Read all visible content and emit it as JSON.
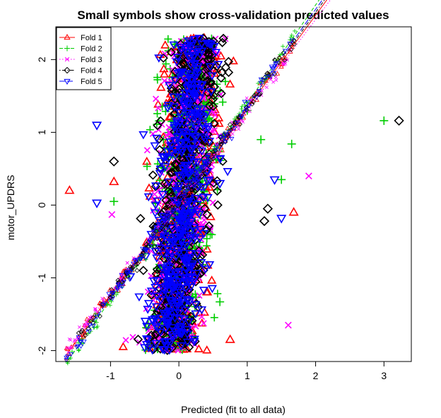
{
  "chart_data": {
    "type": "scatter",
    "title": "Small symbols show cross-validation predicted values",
    "xlabel": "Predicted (fit to all data)",
    "ylabel": "motor_UPDRS",
    "xlim": [
      -1.8,
      3.4
    ],
    "ylim": [
      -2.15,
      2.45
    ],
    "xticks": [
      -1,
      0,
      1,
      2,
      3
    ],
    "yticks": [
      -2,
      -1,
      0,
      1,
      2
    ],
    "legend_position": "top-left",
    "series": [
      {
        "name": "Fold 1",
        "color": "#ff0000",
        "symbol": "triangle-up",
        "line_style": "solid",
        "slope": 1.28,
        "intercept": 0.05
      },
      {
        "name": "Fold 2",
        "color": "#00cd00",
        "symbol": "plus",
        "line_style": "dashed",
        "slope": 1.35,
        "intercept": 0.05
      },
      {
        "name": "Fold 3",
        "color": "#ff00ff",
        "symbol": "cross",
        "line_style": "dotted",
        "slope": 1.25,
        "intercept": 0.05
      },
      {
        "name": "Fold 4",
        "color": "#000000",
        "symbol": "diamond",
        "line_style": "dotdash",
        "slope": 1.3,
        "intercept": 0.05
      },
      {
        "name": "Fold 5",
        "color": "#0000ff",
        "symbol": "triangle-down",
        "line_style": "longdash",
        "slope": 1.32,
        "intercept": 0.05
      }
    ],
    "outliers": [
      {
        "fold": "Fold 1",
        "x": -1.6,
        "y": 0.2
      },
      {
        "fold": "Fold 2",
        "x": 3.0,
        "y": 1.16
      },
      {
        "fold": "Fold 4",
        "x": 3.22,
        "y": 1.16
      },
      {
        "fold": "Fold 2",
        "x": 1.65,
        "y": 0.84
      },
      {
        "fold": "Fold 3",
        "x": 1.9,
        "y": 0.4
      },
      {
        "fold": "Fold 3",
        "x": 1.6,
        "y": -1.65
      },
      {
        "fold": "Fold 1",
        "x": 1.68,
        "y": -0.1
      },
      {
        "fold": "Fold 4",
        "x": 1.3,
        "y": -0.05
      },
      {
        "fold": "Fold 5",
        "x": 1.5,
        "y": -0.18
      },
      {
        "fold": "Fold 2",
        "x": 1.5,
        "y": 0.35
      },
      {
        "fold": "Fold 5",
        "x": 1.4,
        "y": 0.35
      },
      {
        "fold": "Fold 4",
        "x": -0.95,
        "y": 0.6
      },
      {
        "fold": "Fold 5",
        "x": -1.2,
        "y": 0.03
      },
      {
        "fold": "Fold 3",
        "x": -0.98,
        "y": -0.13
      },
      {
        "fold": "Fold 2",
        "x": -0.95,
        "y": 0.05
      },
      {
        "fold": "Fold 1",
        "x": -0.95,
        "y": 0.32
      },
      {
        "fold": "Fold 5",
        "x": -1.2,
        "y": 1.1
      },
      {
        "fold": "Fold 1",
        "x": 0.75,
        "y": -1.85
      },
      {
        "fold": "Fold 4",
        "x": 1.25,
        "y": -0.22
      },
      {
        "fold": "Fold 2",
        "x": 0.6,
        "y": -1.33
      },
      {
        "fold": "Fold 2",
        "x": 1.2,
        "y": 0.9
      },
      {
        "fold": "Fold 2",
        "x": 1.0,
        "y": 1.3
      },
      {
        "fold": "Fold 5",
        "x": 0.6,
        "y": 0.3
      }
    ],
    "cloud": {
      "x_center": 0.05,
      "x_spread": 0.22,
      "y_min": -2.0,
      "y_max": 2.3,
      "points_per_fold": 520
    },
    "cv_band": {
      "x_min": -1.65,
      "x_max": 1.75,
      "points_per_fold": 160
    }
  }
}
